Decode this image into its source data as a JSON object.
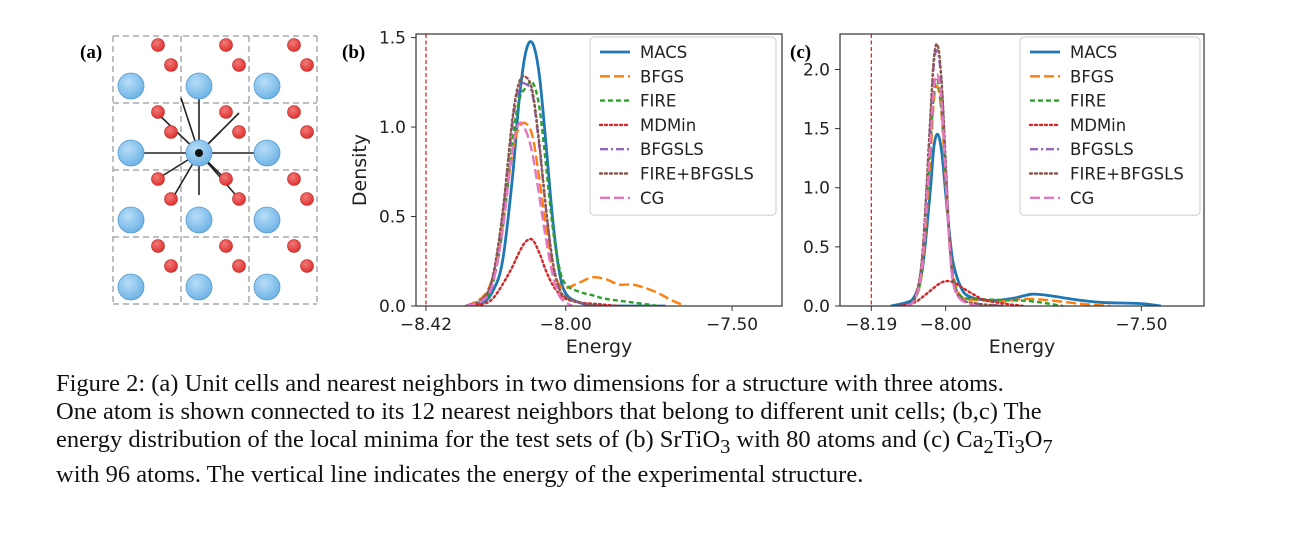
{
  "figure": {
    "panel_a": {
      "label": "(a)",
      "grid_cols": 3,
      "grid_rows": 4,
      "large_atom_color": "#6fb4e6",
      "small_atom_color": "#e0312f"
    },
    "caption": {
      "lines": [
        "Figure 2: (a) Unit cells and nearest neighbors in two dimensions for a structure with three atoms.",
        "One atom is shown connected to its 12 nearest neighbors that belong to different unit cells; (b,c) The"
      ],
      "line3_prefix": "energy distribution of the local minima for the test sets of (b) SrTiO",
      "line3_sub1": "3",
      "line3_mid": " with 80 atoms and (c) Ca",
      "line3_sub2": "2",
      "line3_ti": "Ti",
      "line3_sub3": "3",
      "line3_o": "O",
      "line3_sub4": "7",
      "line4": "with 96 atoms. The vertical line indicates the energy of the experimental structure."
    }
  },
  "chart_data": [
    {
      "type": "line",
      "panel_label": "(b)",
      "xlabel": "Energy",
      "ylabel": "Density",
      "xlim": [
        -8.45,
        -7.35
      ],
      "ylim": [
        0,
        1.52
      ],
      "xticks": [
        -8.42,
        -8.0,
        -7.5
      ],
      "xtick_labels": [
        "−8.42",
        "−8.00",
        "−7.50"
      ],
      "yticks": [
        0.0,
        0.5,
        1.0,
        1.5
      ],
      "ytick_labels": [
        "0.0",
        "0.5",
        "1.0",
        "1.5"
      ],
      "reference_line": {
        "x": -8.42,
        "color": "#d62728"
      },
      "legend_position": "top-right",
      "series": [
        {
          "name": "MACS",
          "color": "#1f77b4",
          "dash": "solid",
          "x": [
            -8.3,
            -8.25,
            -8.22,
            -8.19,
            -8.16,
            -8.14,
            -8.12,
            -8.1,
            -8.08,
            -8.06,
            -8.04,
            -8.02,
            -8.0,
            -7.96,
            -7.9,
            -7.8,
            -7.7
          ],
          "y": [
            0.0,
            0.02,
            0.08,
            0.25,
            0.72,
            1.15,
            1.42,
            1.47,
            1.3,
            0.92,
            0.5,
            0.2,
            0.07,
            0.02,
            0.0,
            0.0,
            0.0
          ]
        },
        {
          "name": "BFGS",
          "color": "#ff7f0e",
          "dash": "longdash",
          "x": [
            -8.3,
            -8.25,
            -8.22,
            -8.19,
            -8.16,
            -8.14,
            -8.12,
            -8.1,
            -8.08,
            -8.06,
            -8.04,
            -8.02,
            -8.0,
            -7.96,
            -7.92,
            -7.88,
            -7.84,
            -7.8,
            -7.76,
            -7.72,
            -7.68,
            -7.64
          ],
          "y": [
            0.0,
            0.05,
            0.16,
            0.45,
            0.86,
            1.0,
            1.02,
            0.95,
            0.72,
            0.45,
            0.22,
            0.12,
            0.1,
            0.13,
            0.16,
            0.15,
            0.12,
            0.12,
            0.1,
            0.07,
            0.03,
            0.0
          ]
        },
        {
          "name": "FIRE",
          "color": "#2ca02c",
          "dash": "dash",
          "x": [
            -8.3,
            -8.25,
            -8.22,
            -8.19,
            -8.16,
            -8.14,
            -8.12,
            -8.1,
            -8.08,
            -8.06,
            -8.04,
            -8.02,
            -8.0,
            -7.96,
            -7.92,
            -7.88,
            -7.8,
            -7.72
          ],
          "y": [
            0.0,
            0.03,
            0.12,
            0.42,
            0.92,
            1.15,
            1.22,
            1.25,
            1.12,
            0.8,
            0.45,
            0.22,
            0.12,
            0.08,
            0.06,
            0.04,
            0.02,
            0.0
          ]
        },
        {
          "name": "MDMin",
          "color": "#d62728",
          "dash": "dot",
          "x": [
            -8.3,
            -8.25,
            -8.22,
            -8.19,
            -8.16,
            -8.14,
            -8.12,
            -8.1,
            -8.08,
            -8.06,
            -8.04,
            -8.02,
            -8.0,
            -7.96,
            -7.9,
            -7.84
          ],
          "y": [
            0.0,
            0.01,
            0.04,
            0.12,
            0.22,
            0.3,
            0.36,
            0.37,
            0.3,
            0.2,
            0.12,
            0.07,
            0.04,
            0.02,
            0.01,
            0.0
          ]
        },
        {
          "name": "BFGSLS",
          "color": "#9467bd",
          "dash": "dashdot",
          "x": [
            -8.3,
            -8.25,
            -8.22,
            -8.19,
            -8.16,
            -8.14,
            -8.12,
            -8.1,
            -8.08,
            -8.06,
            -8.04,
            -8.02,
            -8.0,
            -7.96,
            -7.9
          ],
          "y": [
            0.0,
            0.04,
            0.15,
            0.5,
            1.02,
            1.22,
            1.24,
            1.18,
            0.9,
            0.55,
            0.25,
            0.1,
            0.05,
            0.02,
            0.0
          ]
        },
        {
          "name": "FIRE+BFGSLS",
          "color": "#8c564b",
          "dash": "dot",
          "x": [
            -8.3,
            -8.25,
            -8.22,
            -8.19,
            -8.16,
            -8.14,
            -8.12,
            -8.1,
            -8.08,
            -8.06,
            -8.04,
            -8.02,
            -8.0,
            -7.96,
            -7.9
          ],
          "y": [
            0.0,
            0.04,
            0.16,
            0.52,
            1.05,
            1.25,
            1.28,
            1.2,
            0.92,
            0.56,
            0.26,
            0.1,
            0.05,
            0.02,
            0.0
          ]
        },
        {
          "name": "CG",
          "color": "#e377c2",
          "dash": "longdash",
          "x": [
            -8.3,
            -8.25,
            -8.22,
            -8.19,
            -8.16,
            -8.14,
            -8.12,
            -8.1,
            -8.08,
            -8.06,
            -8.04,
            -8.02,
            -8.0,
            -7.98
          ],
          "y": [
            0.0,
            0.03,
            0.12,
            0.42,
            0.88,
            1.02,
            0.98,
            0.85,
            0.62,
            0.38,
            0.18,
            0.06,
            0.02,
            0.0
          ]
        }
      ]
    },
    {
      "type": "line",
      "panel_label": "(c)",
      "xlabel": "Energy",
      "ylabel": "",
      "xlim": [
        -8.27,
        -7.34
      ],
      "ylim": [
        0,
        2.3
      ],
      "xticks": [
        -8.19,
        -8.0,
        -7.5
      ],
      "xtick_labels": [
        "−8.19",
        "−8.00",
        "−7.50"
      ],
      "yticks": [
        0.0,
        0.5,
        1.0,
        1.5,
        2.0
      ],
      "ytick_labels": [
        "0.0",
        "0.5",
        "1.0",
        "1.5",
        "2.0"
      ],
      "reference_line": {
        "x": -8.19,
        "color": "#d62728"
      },
      "legend_position": "top-right",
      "series": [
        {
          "name": "MACS",
          "color": "#1f77b4",
          "dash": "solid",
          "x": [
            -8.14,
            -8.1,
            -8.08,
            -8.06,
            -8.04,
            -8.03,
            -8.02,
            -8.01,
            -8.0,
            -7.99,
            -7.98,
            -7.96,
            -7.94,
            -7.9,
            -7.86,
            -7.82,
            -7.78,
            -7.74,
            -7.7,
            -7.66,
            -7.6,
            -7.5,
            -7.45
          ],
          "y": [
            0.0,
            0.03,
            0.08,
            0.3,
            0.95,
            1.35,
            1.45,
            1.3,
            0.95,
            0.6,
            0.35,
            0.15,
            0.08,
            0.05,
            0.05,
            0.07,
            0.1,
            0.09,
            0.07,
            0.05,
            0.03,
            0.02,
            0.0
          ]
        },
        {
          "name": "BFGS",
          "color": "#ff7f0e",
          "dash": "longdash",
          "x": [
            -8.1,
            -8.08,
            -8.06,
            -8.04,
            -8.03,
            -8.02,
            -8.01,
            -8.0,
            -7.99,
            -7.98,
            -7.96,
            -7.92,
            -7.85,
            -7.8,
            -7.74,
            -7.66,
            -7.58
          ],
          "y": [
            0.0,
            0.05,
            0.3,
            1.2,
            1.75,
            1.85,
            1.6,
            1.05,
            0.55,
            0.25,
            0.08,
            0.05,
            0.04,
            0.06,
            0.05,
            0.02,
            0.0
          ]
        },
        {
          "name": "FIRE",
          "color": "#2ca02c",
          "dash": "dash",
          "x": [
            -8.1,
            -8.08,
            -8.06,
            -8.04,
            -8.03,
            -8.02,
            -8.01,
            -8.0,
            -7.99,
            -7.98,
            -7.96,
            -7.92,
            -7.85,
            -7.78,
            -7.7
          ],
          "y": [
            0.0,
            0.05,
            0.32,
            1.3,
            1.8,
            1.9,
            1.65,
            1.1,
            0.55,
            0.22,
            0.08,
            0.06,
            0.05,
            0.04,
            0.0
          ]
        },
        {
          "name": "MDMin",
          "color": "#d62728",
          "dash": "dot",
          "x": [
            -8.12,
            -8.08,
            -8.05,
            -8.02,
            -8.0,
            -7.98,
            -7.96,
            -7.93,
            -7.9,
            -7.85,
            -7.8
          ],
          "y": [
            0.0,
            0.03,
            0.1,
            0.18,
            0.21,
            0.2,
            0.16,
            0.1,
            0.05,
            0.02,
            0.0
          ]
        },
        {
          "name": "BFGSLS",
          "color": "#9467bd",
          "dash": "dashdot",
          "x": [
            -8.1,
            -8.08,
            -8.06,
            -8.04,
            -8.03,
            -8.02,
            -8.01,
            -8.0,
            -7.99,
            -7.98,
            -7.96,
            -7.92,
            -7.85
          ],
          "y": [
            0.0,
            0.06,
            0.4,
            1.5,
            2.05,
            2.15,
            1.85,
            1.2,
            0.55,
            0.2,
            0.06,
            0.02,
            0.0
          ]
        },
        {
          "name": "FIRE+BFGSLS",
          "color": "#8c564b",
          "dash": "dot",
          "x": [
            -8.1,
            -8.08,
            -8.06,
            -8.04,
            -8.03,
            -8.02,
            -8.01,
            -8.0,
            -7.99,
            -7.98,
            -7.96,
            -7.92,
            -7.85
          ],
          "y": [
            0.0,
            0.06,
            0.42,
            1.55,
            2.1,
            2.2,
            1.88,
            1.22,
            0.56,
            0.2,
            0.06,
            0.02,
            0.0
          ]
        },
        {
          "name": "CG",
          "color": "#e377c2",
          "dash": "longdash",
          "x": [
            -8.1,
            -8.08,
            -8.06,
            -8.04,
            -8.03,
            -8.02,
            -8.01,
            -8.0,
            -7.99,
            -7.98,
            -7.96,
            -7.92
          ],
          "y": [
            0.0,
            0.05,
            0.35,
            1.35,
            1.85,
            1.95,
            1.7,
            1.1,
            0.5,
            0.18,
            0.05,
            0.0
          ]
        }
      ]
    }
  ]
}
